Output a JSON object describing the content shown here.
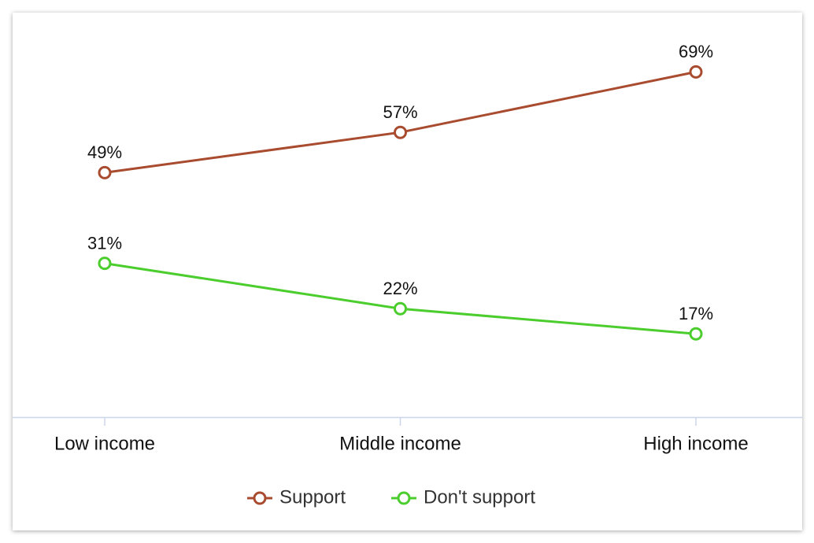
{
  "chart_data": {
    "type": "line",
    "categories": [
      "Low income",
      "Middle income",
      "High income"
    ],
    "series": [
      {
        "name": "Support",
        "color": "#a84b2f",
        "values": [
          49,
          57,
          69
        ],
        "value_labels": [
          "49%",
          "57%",
          "69%"
        ]
      },
      {
        "name": "Don't support",
        "color": "#4ccd2e",
        "values": [
          31,
          22,
          17
        ],
        "value_labels": [
          "31%",
          "22%",
          "17%"
        ]
      }
    ],
    "ylim": [
      0,
      80
    ],
    "legend": "bottom"
  }
}
